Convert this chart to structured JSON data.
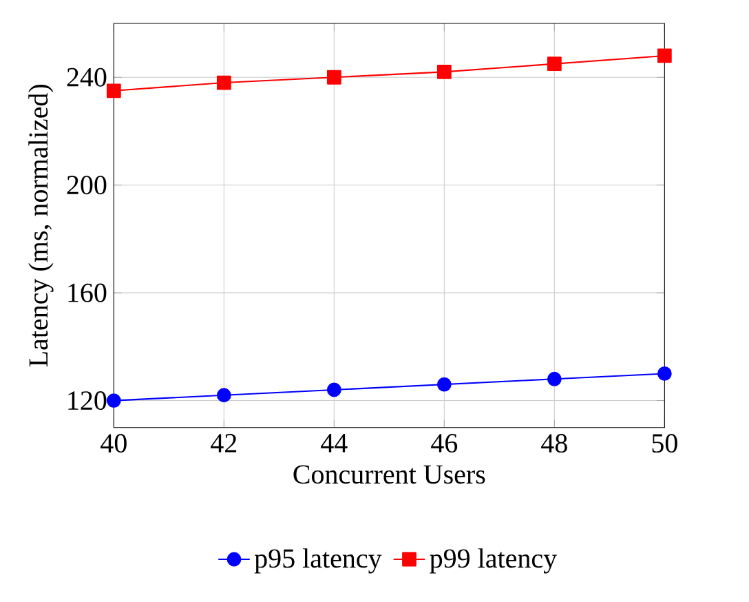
{
  "chart_data": {
    "type": "line",
    "xlabel": "Concurrent Users",
    "ylabel": "Latency (ms, normalized)",
    "x": [
      40,
      42,
      44,
      46,
      48,
      50
    ],
    "series": [
      {
        "name": "p95 latency",
        "color": "#0000ff",
        "marker": "circle",
        "values": [
          120,
          122,
          124,
          126,
          128,
          130
        ]
      },
      {
        "name": "p99 latency",
        "color": "#ff0000",
        "marker": "square",
        "values": [
          235,
          238,
          240,
          242,
          245,
          248
        ]
      }
    ],
    "xlim": [
      40,
      50
    ],
    "xticks": [
      40,
      42,
      44,
      46,
      48,
      50
    ],
    "ylim": [
      110,
      260
    ],
    "yticks": [
      120,
      160,
      200,
      240
    ],
    "grid": true,
    "legend": "bottom"
  }
}
